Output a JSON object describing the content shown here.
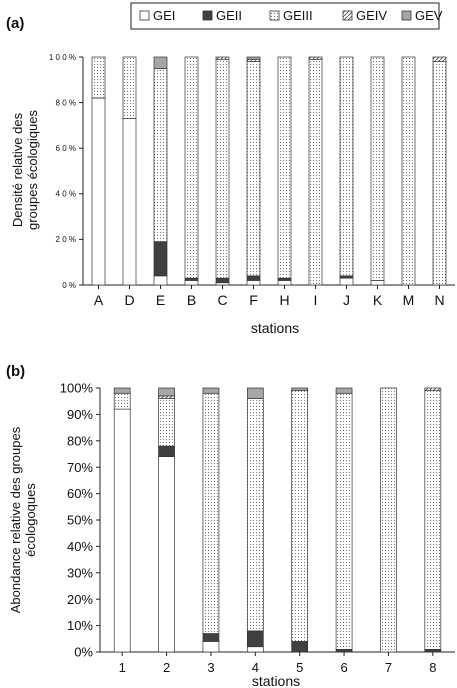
{
  "legend": {
    "items": [
      {
        "label": "GEI",
        "fill": "#ffffff",
        "pattern": "none"
      },
      {
        "label": "GEII",
        "fill": "#404040",
        "pattern": "none"
      },
      {
        "label": "GEIII",
        "fill": "#ffffff",
        "pattern": "dots"
      },
      {
        "label": "GEIV",
        "fill": "#ffffff",
        "pattern": "hatch"
      },
      {
        "label": "GEV",
        "fill": "#a6a6a6",
        "pattern": "none"
      }
    ]
  },
  "chart_data": [
    {
      "type": "bar",
      "stacked": true,
      "panel_label": "(a)",
      "xlabel": "stations",
      "ylabel": "Densité relative des groupes écologiques",
      "ylim": [
        0,
        100
      ],
      "yticks": [
        "0 %",
        "2 0 %",
        "4 0 %",
        "6 0 %",
        "8 0 %",
        "1 0 0 %"
      ],
      "categories": [
        "A",
        "D",
        "E",
        "B",
        "C",
        "F",
        "H",
        "I",
        "J",
        "K",
        "M",
        "N"
      ],
      "series": [
        {
          "name": "GEI",
          "values": [
            82,
            73,
            4,
            2,
            1,
            2,
            2,
            0,
            3,
            2,
            0,
            0
          ]
        },
        {
          "name": "GEII",
          "values": [
            0,
            0,
            15,
            1,
            2,
            2,
            1,
            0,
            1,
            0,
            0,
            0
          ]
        },
        {
          "name": "GEIII",
          "values": [
            18,
            27,
            76,
            97,
            96,
            94,
            97,
            99,
            96,
            98,
            100,
            98
          ]
        },
        {
          "name": "GEIV",
          "values": [
            0,
            0,
            0,
            0,
            1,
            1,
            0,
            1,
            0,
            0,
            0,
            2
          ]
        },
        {
          "name": "GEV",
          "values": [
            0,
            0,
            5,
            0,
            0,
            1,
            0,
            0,
            0,
            0,
            0,
            0
          ]
        }
      ]
    },
    {
      "type": "bar",
      "stacked": true,
      "panel_label": "(b)",
      "xlabel": "stations",
      "ylabel": "Abondance relative des groupes écologoques",
      "ylim": [
        0,
        100
      ],
      "yticks": [
        "0%",
        "10%",
        "20%",
        "30%",
        "40%",
        "50%",
        "60%",
        "70%",
        "80%",
        "90%",
        "100%"
      ],
      "categories": [
        "1",
        "2",
        "3",
        "4",
        "5",
        "6",
        "7",
        "8"
      ],
      "series": [
        {
          "name": "GEI",
          "values": [
            92,
            74,
            4,
            2,
            0,
            0,
            0,
            0
          ]
        },
        {
          "name": "GEII",
          "values": [
            0,
            4,
            3,
            6,
            4,
            1,
            0,
            1
          ]
        },
        {
          "name": "GEIII",
          "values": [
            6,
            18,
            91,
            88,
            95,
            97,
            100,
            98
          ]
        },
        {
          "name": "GEIV",
          "values": [
            0,
            1,
            0,
            0,
            0,
            0,
            0,
            1
          ]
        },
        {
          "name": "GEV",
          "values": [
            2,
            3,
            2,
            4,
            1,
            2,
            0,
            0
          ]
        }
      ]
    }
  ]
}
